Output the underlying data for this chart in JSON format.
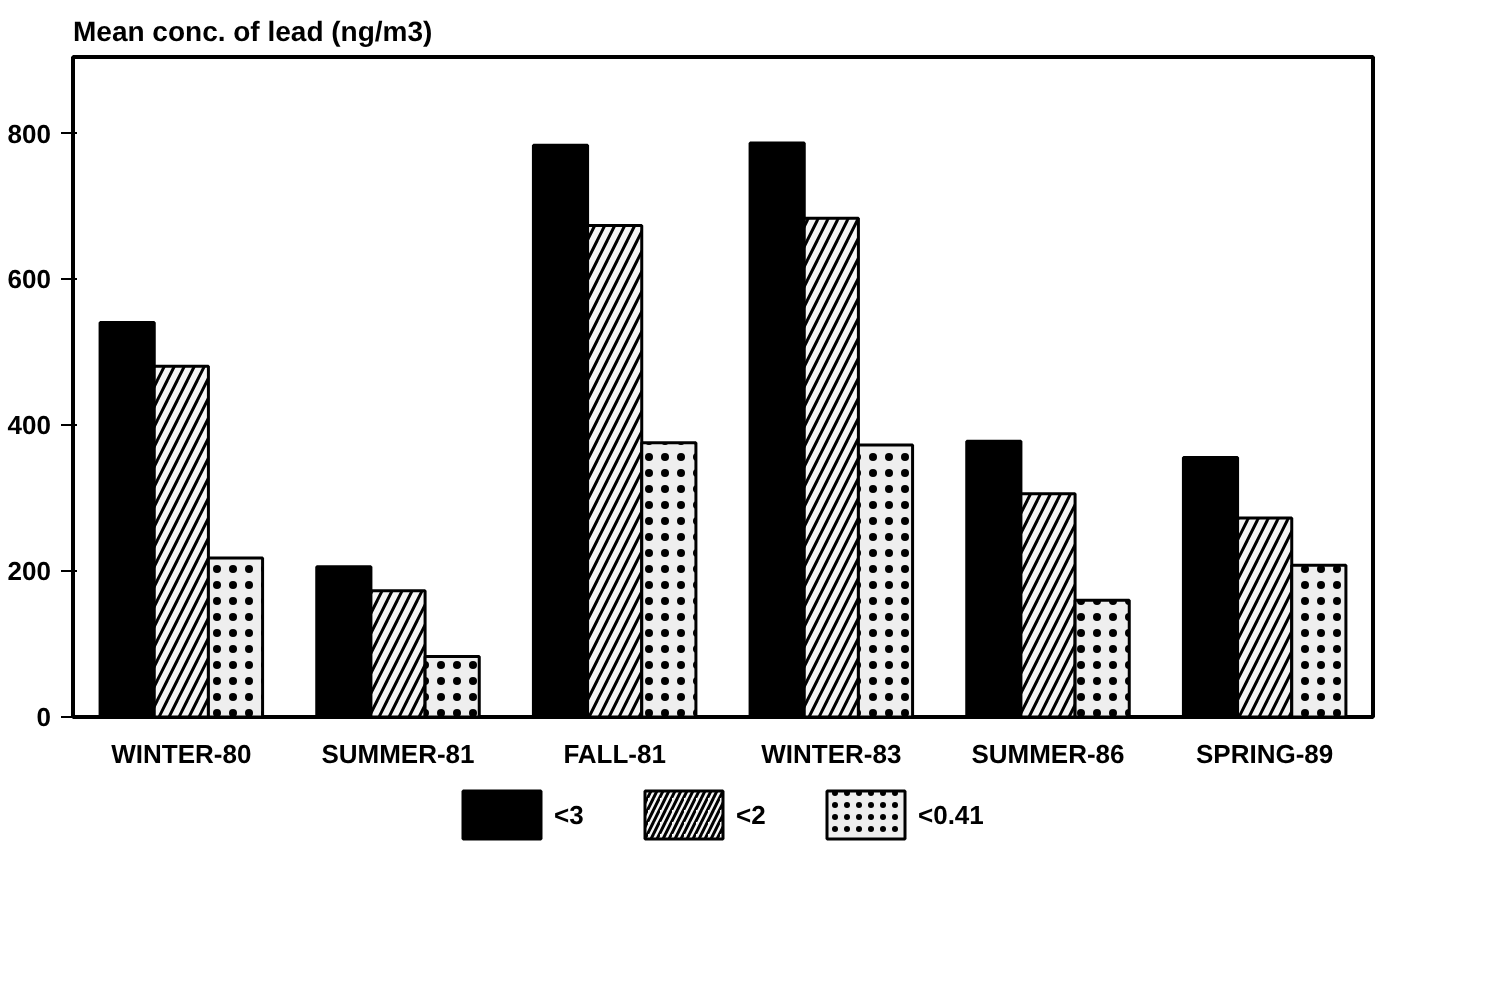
{
  "chart_data": {
    "type": "bar",
    "title": "Mean conc. of lead (ng/m3)",
    "categories": [
      "WINTER-80",
      "SUMMER-81",
      "FALL-81",
      "WINTER-83",
      "SUMMER-86",
      "SPRING-89"
    ],
    "series": [
      {
        "name": "<3",
        "color": "#000000",
        "values": [
          541,
          206,
          784,
          787,
          378,
          356
        ]
      },
      {
        "name": "<2",
        "color": "#f5f5f5",
        "values": [
          481,
          173,
          674,
          684,
          306,
          273
        ]
      },
      {
        "name": "<0.41",
        "color": "#eeeeee",
        "values": [
          218,
          83,
          376,
          373,
          160,
          208
        ]
      }
    ],
    "ylim": [
      0,
      905
    ],
    "yticks": [
      0,
      200,
      400,
      600,
      800
    ],
    "grid": false,
    "legend": "bottom"
  }
}
